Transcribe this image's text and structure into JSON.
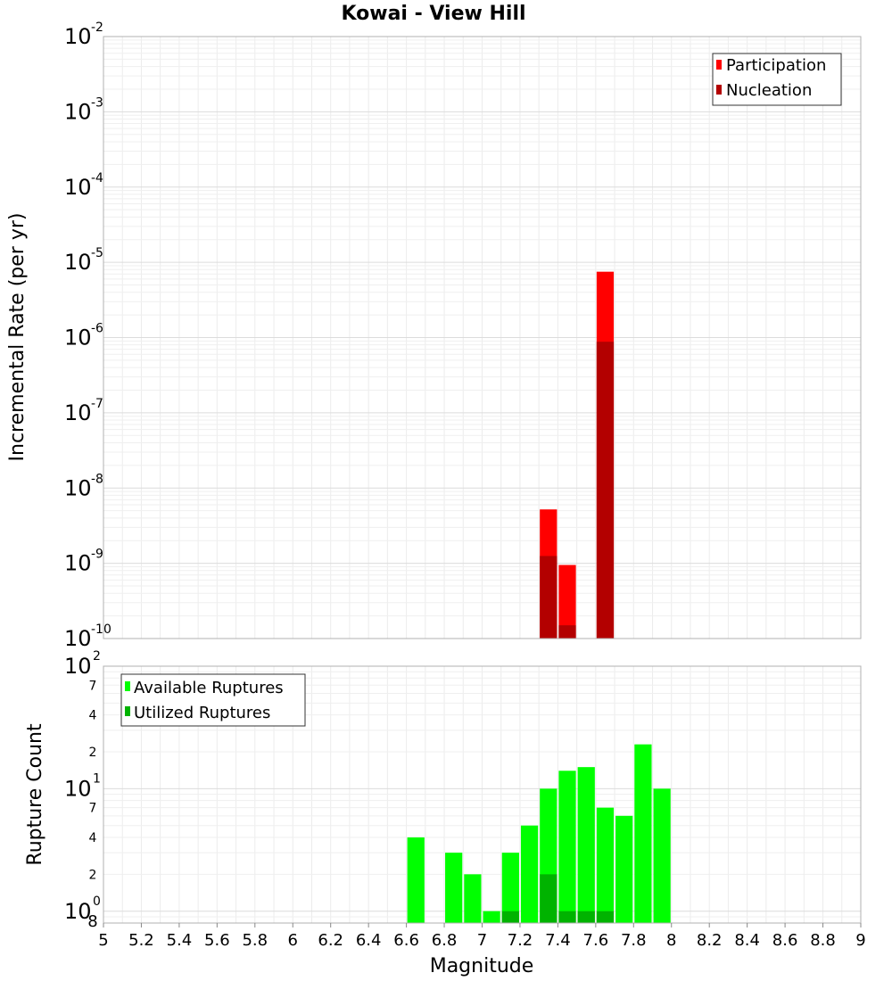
{
  "chart_data": [
    {
      "type": "bar",
      "title": "Kowai - View Hill",
      "xlabel": "Magnitude",
      "ylabel": "Incremental Rate (per yr)",
      "yscale": "log",
      "xlim": [
        5,
        9
      ],
      "ylim": [
        1e-10,
        0.01
      ],
      "bin_width": 0.1,
      "y_tick_exponents": [
        "-2",
        "-3",
        "-4",
        "-5",
        "-6",
        "-7",
        "-8",
        "-9",
        "-10"
      ],
      "y_tick_base": "10",
      "legend_position": "top-right",
      "series": [
        {
          "name": "Participation",
          "color": "#ff0000",
          "x": [
            7.35,
            7.45,
            7.65
          ],
          "values": [
            5.2e-09,
            9.5e-10,
            7.5e-06
          ]
        },
        {
          "name": "Nucleation",
          "color": "#b30000",
          "x": [
            7.35,
            7.45,
            7.65
          ],
          "values": [
            1.25e-09,
            1.5e-10,
            8.8e-07
          ]
        }
      ]
    },
    {
      "type": "bar",
      "xlabel": "Magnitude",
      "ylabel": "Rupture Count",
      "yscale": "log",
      "xlim": [
        5,
        9
      ],
      "ylim": [
        0.8,
        100
      ],
      "bin_width": 0.1,
      "x_ticks": [
        "5",
        "5.2",
        "5.4",
        "5.6",
        "5.8",
        "6",
        "6.2",
        "6.4",
        "6.6",
        "6.8",
        "7",
        "7.2",
        "7.4",
        "7.6",
        "7.8",
        "8",
        "8.2",
        "8.4",
        "8.6",
        "8.8",
        "9"
      ],
      "y_tick_base": "10",
      "y_major_exponents": [
        "2",
        "1",
        "0"
      ],
      "y_minor_labels": [
        "7",
        "4",
        "2",
        "7",
        "4",
        "2",
        "8"
      ],
      "legend_position": "top-left",
      "series": [
        {
          "name": "Available Ruptures",
          "color": "#00ff00",
          "x": [
            6.65,
            6.85,
            6.95,
            7.05,
            7.15,
            7.25,
            7.35,
            7.45,
            7.55,
            7.65,
            7.75,
            7.85,
            7.95
          ],
          "values": [
            4,
            3,
            2,
            1,
            3,
            5,
            10,
            14,
            15,
            7,
            6,
            23,
            10
          ]
        },
        {
          "name": "Utilized Ruptures",
          "color": "#00b300",
          "x": [
            7.15,
            7.35,
            7.45,
            7.55,
            7.65
          ],
          "values": [
            1,
            2,
            1,
            1,
            1
          ]
        }
      ]
    }
  ]
}
